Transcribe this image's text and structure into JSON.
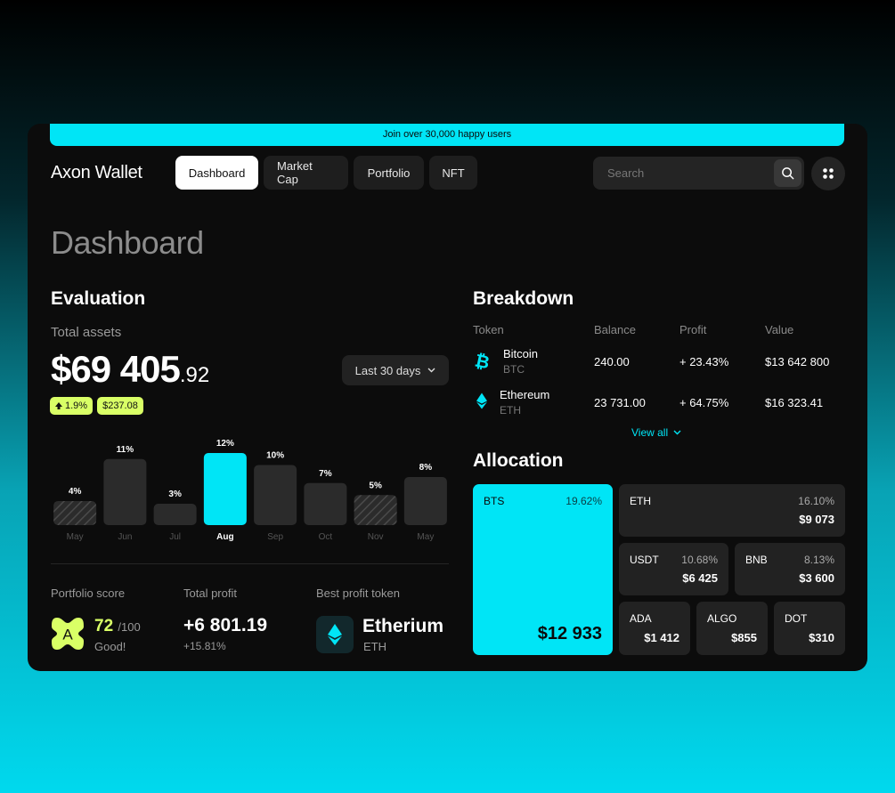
{
  "banner": {
    "text": "Join over 30,000 happy users"
  },
  "header": {
    "brand": "Axon Wallet",
    "tabs": [
      {
        "label": "Dashboard",
        "active": true
      },
      {
        "label": "Market Cap",
        "active": false
      },
      {
        "label": "Portfolio",
        "active": false
      },
      {
        "label": "NFT",
        "active": false
      }
    ],
    "search_placeholder": "Search"
  },
  "page_title": "Dashboard",
  "evaluation": {
    "title": "Evaluation",
    "total_label": "Total assets",
    "total_main": "$69 405",
    "total_cents": ".92",
    "badge_change": "1.9%",
    "badge_amount": "$237.08",
    "range_label": "Last 30 days",
    "chart_data": {
      "type": "bar",
      "categories": [
        "May",
        "Jun",
        "Jul",
        "Aug",
        "Sep",
        "Oct",
        "Nov",
        "May"
      ],
      "values": [
        4,
        11,
        3,
        12,
        10,
        7,
        5,
        8
      ],
      "value_labels": [
        "4%",
        "11%",
        "3%",
        "12%",
        "10%",
        "7%",
        "5%",
        "8%"
      ],
      "highlighted": "Aug",
      "hatched": [
        "May",
        "Nov"
      ]
    }
  },
  "stats": {
    "score_label": "Portfolio score",
    "score_letter": "A",
    "score_value": "72",
    "score_of": "/100",
    "score_text": "Good!",
    "profit_label": "Total profit",
    "profit_value": "+6 801.19",
    "profit_pct": "+15.81%",
    "best_label": "Best profit token",
    "best_name": "Etherium",
    "best_symbol": "ETH"
  },
  "breakdown": {
    "title": "Breakdown",
    "headers": [
      "Token",
      "Balance",
      "Profit",
      "Value"
    ],
    "rows": [
      {
        "name": "Bitcoin",
        "symbol": "BTC",
        "balance": "240.00",
        "profit": "+ 23.43%",
        "value": "$13 642 800"
      },
      {
        "name": "Ethereum",
        "symbol": "ETH",
        "balance": "23 731.00",
        "profit": "+ 64.75%",
        "value": "$16 323.41"
      }
    ],
    "view_all": "View all"
  },
  "allocation": {
    "title": "Allocation",
    "tiles": [
      {
        "name": "BTS",
        "pct": "19.62%",
        "value": "$12 933"
      },
      {
        "name": "ETH",
        "pct": "16.10%",
        "value": "$9 073"
      },
      {
        "name": "USDT",
        "pct": "10.68%",
        "value": "$6 425"
      },
      {
        "name": "BNB",
        "pct": "8.13%",
        "value": "$3 600"
      },
      {
        "name": "ADA",
        "value": "$1 412"
      },
      {
        "name": "ALGO",
        "value": "$855"
      },
      {
        "name": "DOT",
        "value": "$310"
      }
    ]
  },
  "colors": {
    "accent": "#00e5f6",
    "lime": "#d9ff66",
    "panel": "#0c0c0c"
  }
}
